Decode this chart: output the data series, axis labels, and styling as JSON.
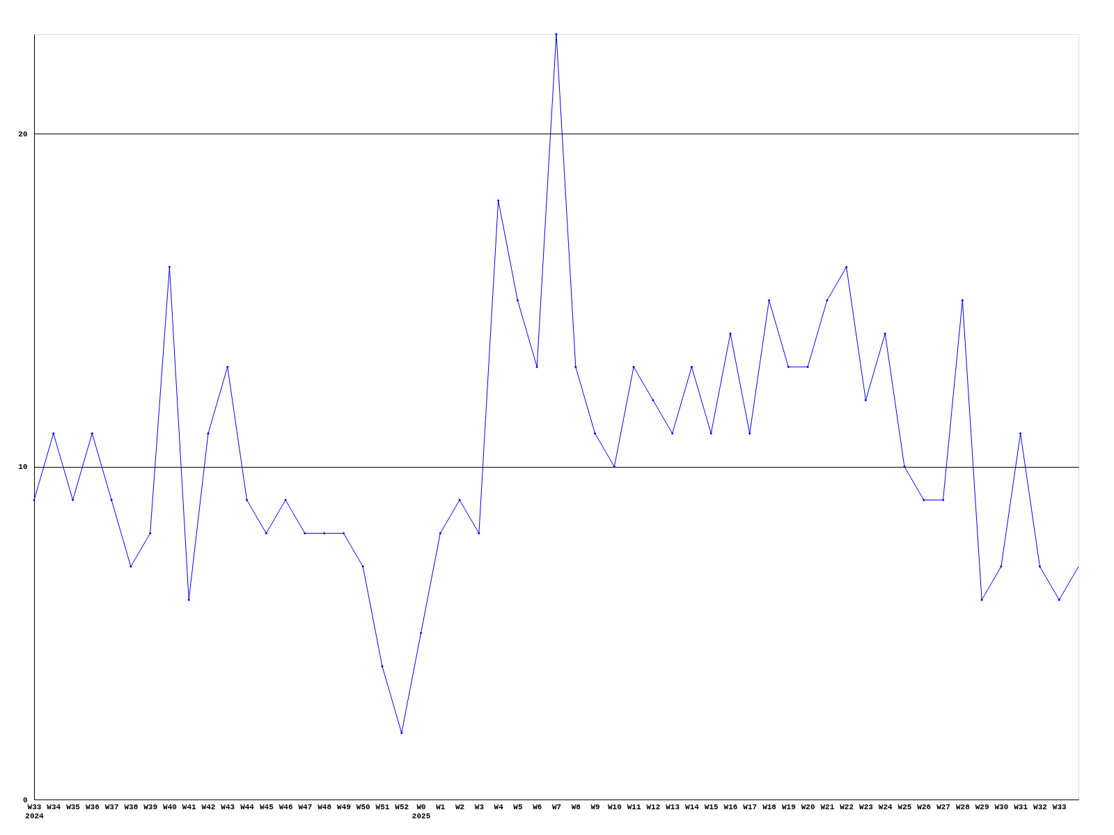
{
  "chart_data": {
    "type": "line",
    "categories": [
      "W33\n2024",
      "W34",
      "W35",
      "W36",
      "W37",
      "W38",
      "W39",
      "W40",
      "W41",
      "W42",
      "W43",
      "W44",
      "W45",
      "W46",
      "W47",
      "W48",
      "W49",
      "W50",
      "W51",
      "W52",
      "W0\n2025",
      "W1",
      "W2",
      "W3",
      "W4",
      "W5",
      "W6",
      "W7",
      "W8",
      "W9",
      "W10",
      "W11",
      "W12",
      "W13",
      "W14",
      "W15",
      "W16",
      "W17",
      "W18",
      "W19",
      "W20",
      "W21",
      "W22",
      "W23",
      "W24",
      "W25",
      "W26",
      "W27",
      "W28",
      "W29",
      "W30",
      "W31",
      "W32",
      "W33",
      null
    ],
    "series": [
      {
        "color": "#0000ff",
        "values": [
          9,
          11,
          9,
          11,
          9,
          7,
          8,
          16,
          6,
          11,
          13,
          9,
          8,
          9,
          8,
          8,
          8,
          7,
          4,
          2,
          5,
          8,
          9,
          8,
          18,
          15,
          13,
          23,
          13,
          11,
          10,
          13,
          12,
          11,
          13,
          11,
          14,
          11,
          15,
          13,
          13,
          15,
          16,
          12,
          14,
          10,
          9,
          9,
          15,
          6,
          7,
          11,
          7,
          6,
          7
        ]
      }
    ],
    "ylim": [
      0,
      23
    ],
    "yticks": [
      0,
      10,
      20
    ],
    "grid": "y",
    "marker": "diamond",
    "line_style": "solid"
  }
}
